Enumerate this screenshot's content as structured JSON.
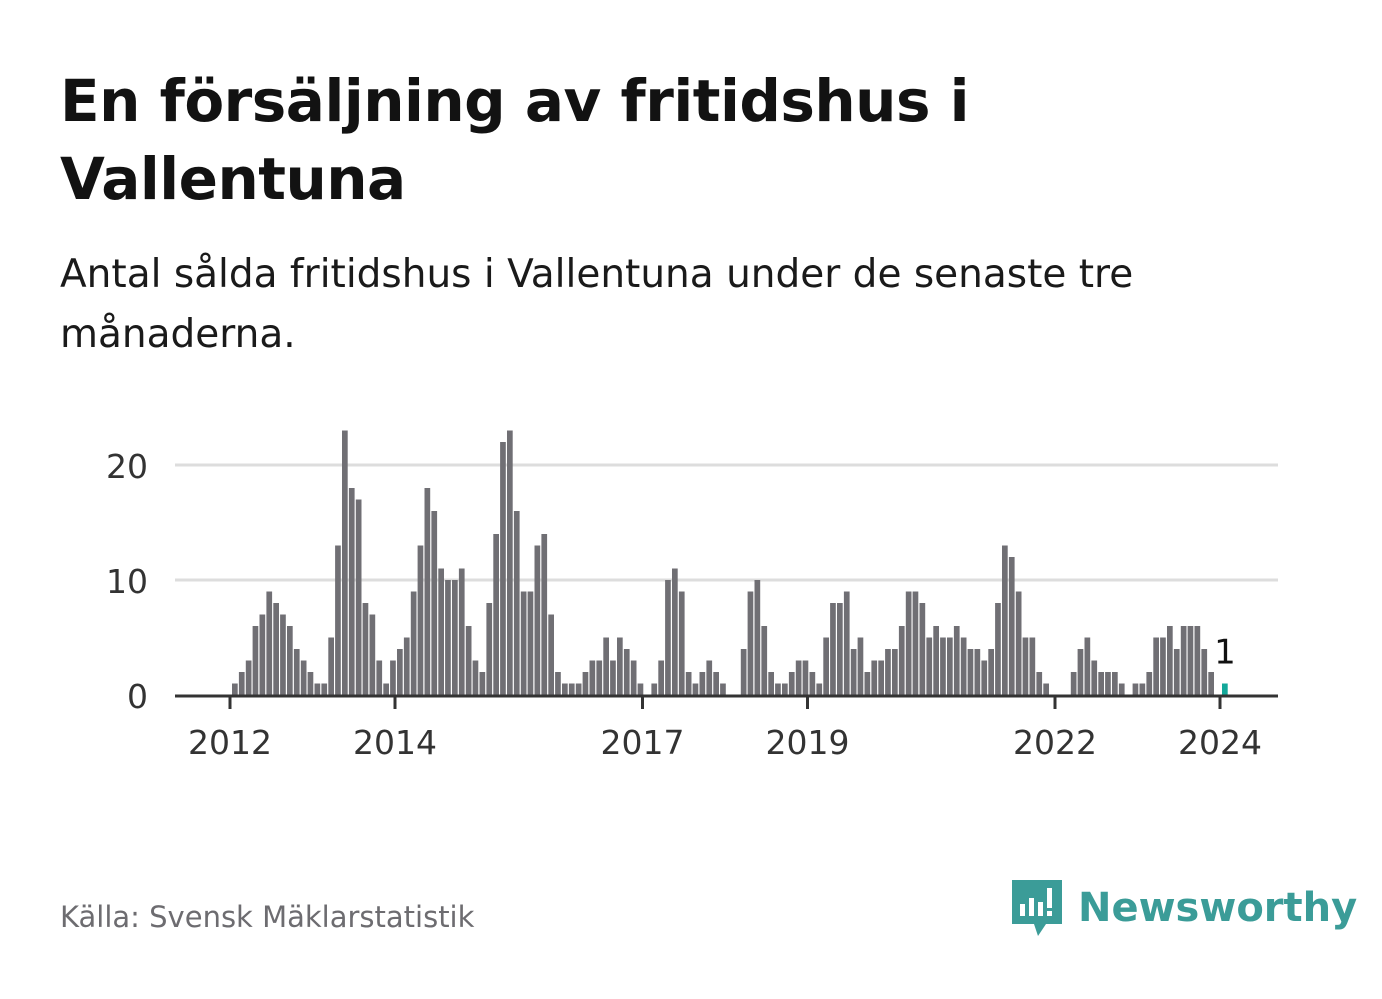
{
  "title": "En försäljning av fritidshus i Vallentuna",
  "subtitle": "Antal sålda fritidshus i Vallentuna under de senaste tre månaderna.",
  "source": "Källa: Svensk Mäklarstatistik",
  "brand": "Newsworthy",
  "colors": {
    "bar": "#706f74",
    "highlight": "#14a89a",
    "grid": "#dddddd",
    "axis": "#333333",
    "brand": "#3b9c98"
  },
  "chart_data": {
    "type": "bar",
    "title": "En försäljning av fritidshus i Vallentuna",
    "xlabel": "",
    "ylabel": "",
    "start": "2012-01",
    "frequency": "monthly",
    "ylim": [
      0,
      23
    ],
    "yticks": [
      0,
      10,
      20
    ],
    "xticks": [
      2012,
      2014,
      2017,
      2019,
      2022,
      2024
    ],
    "grid": true,
    "values": [
      1,
      2,
      3,
      6,
      7,
      9,
      8,
      7,
      6,
      4,
      3,
      2,
      1,
      1,
      5,
      13,
      23,
      18,
      17,
      8,
      7,
      3,
      1,
      3,
      4,
      5,
      9,
      13,
      18,
      16,
      11,
      10,
      10,
      11,
      6,
      3,
      2,
      8,
      14,
      22,
      23,
      16,
      9,
      9,
      13,
      14,
      7,
      2,
      1,
      1,
      1,
      2,
      3,
      3,
      5,
      3,
      5,
      4,
      3,
      1,
      0,
      1,
      3,
      10,
      11,
      9,
      2,
      1,
      2,
      3,
      2,
      1,
      0,
      0,
      4,
      9,
      10,
      6,
      2,
      1,
      1,
      2,
      3,
      3,
      2,
      1,
      5,
      8,
      8,
      9,
      4,
      5,
      2,
      3,
      3,
      4,
      4,
      6,
      9,
      9,
      8,
      5,
      6,
      5,
      5,
      6,
      5,
      4,
      4,
      3,
      4,
      8,
      13,
      12,
      9,
      5,
      5,
      2,
      1,
      0,
      0,
      0,
      2,
      4,
      5,
      3,
      2,
      2,
      2,
      1,
      0,
      1,
      1,
      2,
      5,
      5,
      6,
      4,
      6,
      6,
      6,
      4,
      2,
      0,
      1
    ],
    "highlight_last": true,
    "annotation": "1"
  }
}
